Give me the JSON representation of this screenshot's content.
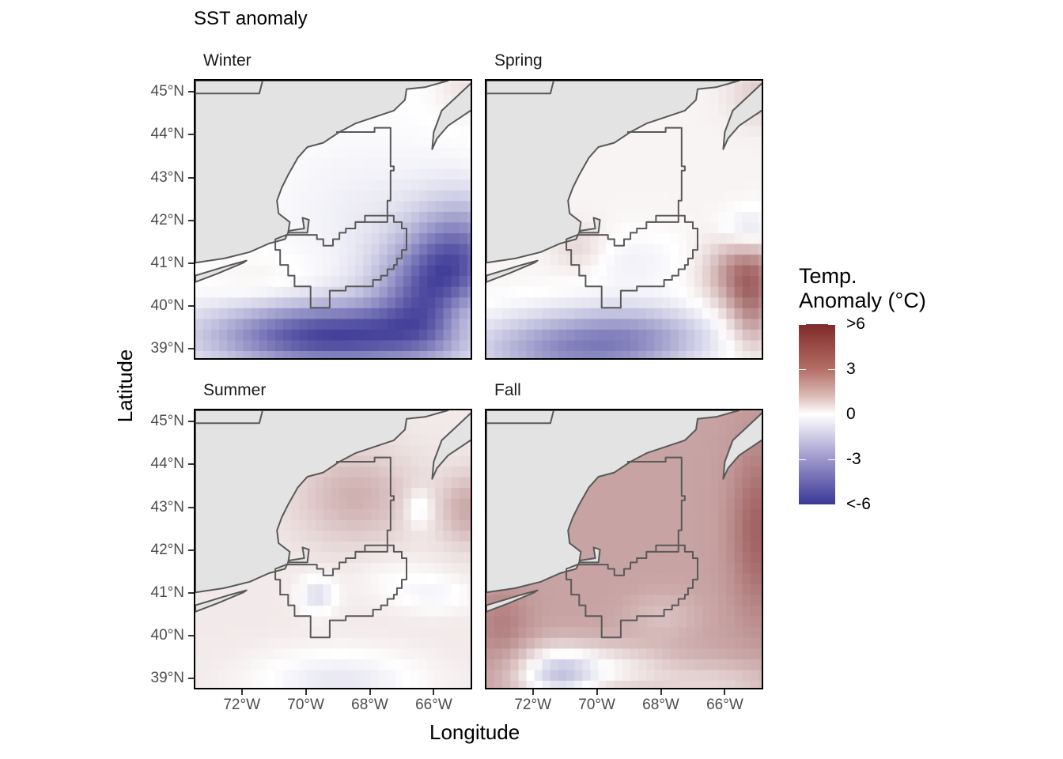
{
  "chart_data": {
    "type": "heatmap",
    "title": "SST anomaly",
    "xlabel": "Longitude",
    "ylabel": "Latitude",
    "xlim": [
      -73.5,
      -64.8
    ],
    "ylim": [
      38.75,
      45.3
    ],
    "x_ticks": [
      -72,
      -70,
      -68,
      -66
    ],
    "x_tick_labels": [
      "72°W",
      "70°W",
      "68°W",
      "66°W"
    ],
    "y_ticks": [
      39,
      40,
      41,
      42,
      43,
      44,
      45
    ],
    "y_tick_labels": [
      "39°N",
      "40°N",
      "41°N",
      "42°N",
      "43°N",
      "44°N",
      "45°N"
    ],
    "grid_cell_deg": 0.25,
    "legend": {
      "title_line1": "Temp.",
      "title_line2": "Anomaly (°C)",
      "position": "right",
      "range": [
        -6,
        6
      ],
      "breaks": [
        6,
        3,
        0,
        -3,
        -6
      ],
      "break_labels": [
        ">6",
        "3",
        "0",
        "-3",
        "<-6"
      ],
      "low_color": "#3b3896",
      "mid_color": "#ffffff",
      "high_color": "#7f2a2a"
    },
    "land_color": "#e3e3e3",
    "outline_color": "#595959",
    "facets": [
      {
        "name": "Winter",
        "base": 0.0,
        "features": [
          {
            "lon": -69.3,
            "lat": 39.35,
            "amp": -5.6,
            "sx": 2.6,
            "sy": 0.55
          },
          {
            "lon": -66.2,
            "lat": 40.4,
            "amp": -4.0,
            "sx": 1.2,
            "sy": 0.9
          },
          {
            "lon": -65.2,
            "lat": 41.3,
            "amp": -3.2,
            "sx": 1.0,
            "sy": 0.9
          },
          {
            "lon": -65.2,
            "lat": 39.8,
            "amp": 1.6,
            "sx": 0.6,
            "sy": 0.5
          },
          {
            "lon": -71.5,
            "lat": 40.6,
            "amp": 0.5,
            "sx": 1.2,
            "sy": 0.4
          },
          {
            "lon": -68.0,
            "lat": 42.2,
            "amp": -0.5,
            "sx": 2.0,
            "sy": 1.2
          },
          {
            "lon": -65.0,
            "lat": 45.1,
            "amp": 0.8,
            "sx": 0.7,
            "sy": 0.5
          }
        ]
      },
      {
        "name": "Spring",
        "base": 0.3,
        "features": [
          {
            "lon": -70.8,
            "lat": 39.05,
            "amp": -3.6,
            "sx": 2.2,
            "sy": 0.6
          },
          {
            "lon": -68.5,
            "lat": 39.4,
            "amp": -1.8,
            "sx": 1.6,
            "sy": 0.5
          },
          {
            "lon": -65.4,
            "lat": 40.8,
            "amp": 3.6,
            "sx": 0.8,
            "sy": 0.6
          },
          {
            "lon": -65.2,
            "lat": 39.8,
            "amp": 2.2,
            "sx": 0.5,
            "sy": 0.6
          },
          {
            "lon": -65.3,
            "lat": 41.8,
            "amp": -1.6,
            "sx": 0.6,
            "sy": 0.35
          },
          {
            "lon": -69.0,
            "lat": 41.1,
            "amp": -0.7,
            "sx": 1.3,
            "sy": 0.5
          },
          {
            "lon": -70.6,
            "lat": 41.4,
            "amp": 1.0,
            "sx": 0.6,
            "sy": 0.4
          },
          {
            "lon": -64.9,
            "lat": 45.0,
            "amp": 1.2,
            "sx": 0.7,
            "sy": 0.5
          }
        ]
      },
      {
        "name": "Summer",
        "base": 0.6,
        "features": [
          {
            "lon": -68.5,
            "lat": 43.3,
            "amp": 1.6,
            "sx": 1.3,
            "sy": 0.8
          },
          {
            "lon": -65.0,
            "lat": 43.0,
            "amp": 1.8,
            "sx": 0.6,
            "sy": 0.6
          },
          {
            "lon": -66.5,
            "lat": 43.0,
            "amp": -1.4,
            "sx": 0.3,
            "sy": 0.3
          },
          {
            "lon": -69.7,
            "lat": 41.0,
            "amp": -1.6,
            "sx": 0.4,
            "sy": 0.3
          },
          {
            "lon": -69.0,
            "lat": 39.0,
            "amp": -1.3,
            "sx": 1.8,
            "sy": 0.5
          },
          {
            "lon": -66.0,
            "lat": 41.0,
            "amp": -0.8,
            "sx": 0.8,
            "sy": 0.3
          },
          {
            "lon": -67.3,
            "lat": 41.4,
            "amp": -0.5,
            "sx": 1.0,
            "sy": 0.4
          }
        ]
      },
      {
        "name": "Fall",
        "base": 2.6,
        "features": [
          {
            "lon": -71.3,
            "lat": 39.15,
            "amp": -3.8,
            "sx": 0.9,
            "sy": 0.45
          },
          {
            "lon": -69.5,
            "lat": 39.3,
            "amp": -1.8,
            "sx": 1.2,
            "sy": 0.4
          },
          {
            "lon": -65.0,
            "lat": 42.5,
            "amp": 1.8,
            "sx": 0.6,
            "sy": 1.4
          },
          {
            "lon": -66.5,
            "lat": 38.9,
            "amp": -1.4,
            "sx": 1.6,
            "sy": 0.4
          },
          {
            "lon": -68.0,
            "lat": 40.5,
            "amp": -0.8,
            "sx": 0.8,
            "sy": 0.4
          },
          {
            "lon": -73.0,
            "lat": 40.3,
            "amp": 1.0,
            "sx": 0.6,
            "sy": 0.6
          }
        ]
      }
    ]
  }
}
